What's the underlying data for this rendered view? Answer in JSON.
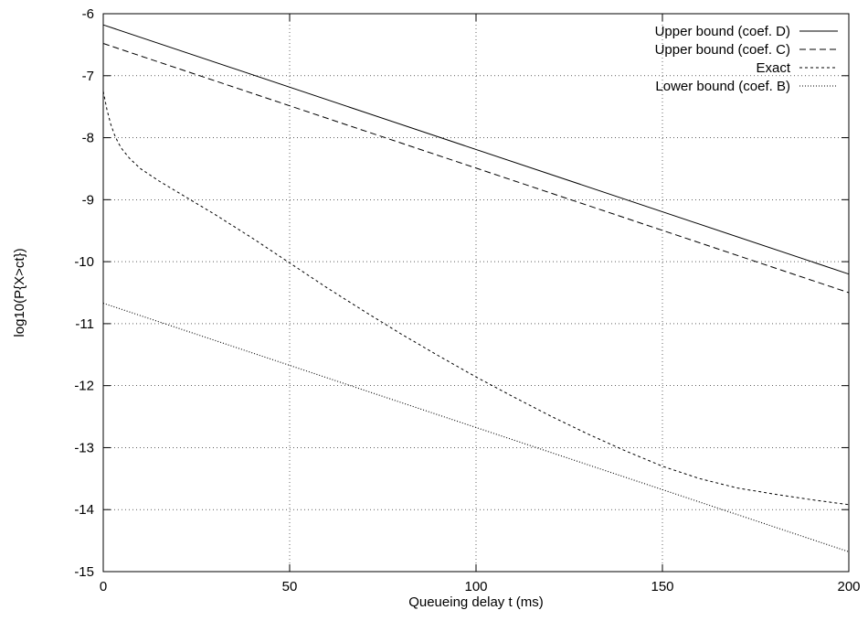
{
  "chart_data": {
    "type": "line",
    "title": "",
    "xlabel": "Queueing delay t (ms)",
    "ylabel": "log10(P{X>ct})",
    "xlim": [
      0,
      200
    ],
    "ylim": [
      -15,
      -6
    ],
    "x_ticks": [
      0,
      50,
      100,
      150,
      200
    ],
    "y_ticks": [
      -15,
      -14,
      -13,
      -12,
      -11,
      -10,
      -9,
      -8,
      -7,
      -6
    ],
    "grid": true,
    "legend_position": "top-right",
    "series": [
      {
        "name": "Upper bound (coef. D)",
        "line_style": "solid",
        "x": [
          0,
          200
        ],
        "y": [
          -6.18,
          -10.2
        ]
      },
      {
        "name": "Upper bound (coef. C)",
        "line_style": "dashed",
        "x": [
          0,
          200
        ],
        "y": [
          -6.48,
          -10.5
        ]
      },
      {
        "name": "Exact",
        "line_style": "short-dashed",
        "x": [
          0,
          1,
          2,
          3,
          4,
          5,
          7,
          10,
          15,
          20,
          25,
          30,
          40,
          50,
          60,
          70,
          80,
          90,
          100,
          110,
          120,
          130,
          140,
          150,
          160,
          170,
          180,
          190,
          200
        ],
        "y": [
          -7.25,
          -7.55,
          -7.78,
          -7.95,
          -8.08,
          -8.18,
          -8.33,
          -8.5,
          -8.7,
          -8.88,
          -9.06,
          -9.24,
          -9.62,
          -10.02,
          -10.42,
          -10.8,
          -11.17,
          -11.52,
          -11.86,
          -12.18,
          -12.49,
          -12.78,
          -13.05,
          -13.3,
          -13.5,
          -13.65,
          -13.75,
          -13.84,
          -13.92
        ]
      },
      {
        "name": "Lower bound (coef. B)",
        "line_style": "dotted",
        "x": [
          0,
          200
        ],
        "y": [
          -10.67,
          -14.68
        ]
      }
    ]
  }
}
